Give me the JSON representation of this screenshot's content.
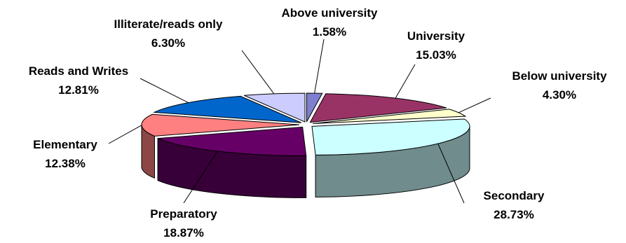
{
  "chart_data": {
    "type": "pie",
    "variant": "3d-exploded",
    "title": "",
    "legend": "none",
    "slices": [
      {
        "label": "Above university",
        "value": 1.58,
        "value_label": "1.58%",
        "color": "#7f7fd0"
      },
      {
        "label": "University",
        "value": 15.03,
        "value_label": "15.03%",
        "color": "#993366"
      },
      {
        "label": "Below university",
        "value": 4.3,
        "value_label": "4.30%",
        "color": "#ffffcc"
      },
      {
        "label": "Secondary",
        "value": 28.73,
        "value_label": "28.73%",
        "color": "#ccffff"
      },
      {
        "label": "Preparatory",
        "value": 18.87,
        "value_label": "18.87%",
        "color": "#660066"
      },
      {
        "label": "Elementary",
        "value": 12.38,
        "value_label": "12.38%",
        "color": "#ff8080"
      },
      {
        "label": "Reads and Writes",
        "value": 12.81,
        "value_label": "12.81%",
        "color": "#0066cc"
      },
      {
        "label": "Illiterate/reads only",
        "value": 6.3,
        "value_label": "6.30%",
        "color": "#ccccff"
      }
    ]
  }
}
